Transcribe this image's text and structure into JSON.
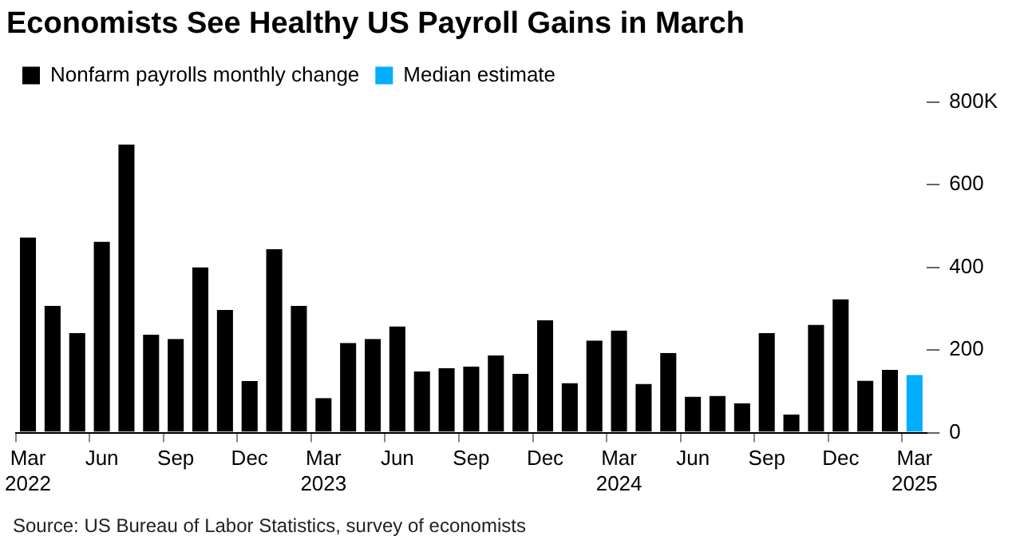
{
  "chart_data": {
    "type": "bar",
    "title": "Economists See Healthy US Payroll Gains in March",
    "categories": [
      "Mar 2022",
      null,
      null,
      "Jun",
      null,
      null,
      "Sep",
      null,
      null,
      "Dec",
      null,
      null,
      "Mar 2023",
      null,
      null,
      "Jun",
      null,
      null,
      "Sep",
      null,
      null,
      "Dec",
      null,
      null,
      "Mar 2024",
      null,
      null,
      "Jun",
      null,
      null,
      "Sep",
      null,
      null,
      "Dec",
      null,
      null,
      "Mar 2025"
    ],
    "series": [
      {
        "name": "Nonfarm payrolls monthly change",
        "color": "#000000",
        "values": [
          472,
          307,
          241,
          462,
          697,
          237,
          227,
          400,
          297,
          125,
          444,
          307,
          84,
          217,
          227,
          257,
          148,
          156,
          160,
          187,
          142,
          272,
          120,
          223,
          247,
          118,
          193,
          87,
          89,
          71,
          241,
          44,
          261,
          323,
          126,
          152,
          null
        ]
      },
      {
        "name": "Median estimate",
        "color": "#00aeff",
        "values": [
          null,
          null,
          null,
          null,
          null,
          null,
          null,
          null,
          null,
          null,
          null,
          null,
          null,
          null,
          null,
          null,
          null,
          null,
          null,
          null,
          null,
          null,
          null,
          null,
          null,
          null,
          null,
          null,
          null,
          null,
          null,
          null,
          null,
          null,
          null,
          null,
          140
        ]
      }
    ],
    "ylim": [
      0,
      800
    ],
    "yticks": [
      0,
      200,
      400,
      600,
      {
        "value": 800,
        "label": "800K"
      }
    ],
    "grid": false,
    "legend": "top left",
    "annotations": [
      "Source: US Bureau of Labor Statistics, survey of economists"
    ]
  }
}
